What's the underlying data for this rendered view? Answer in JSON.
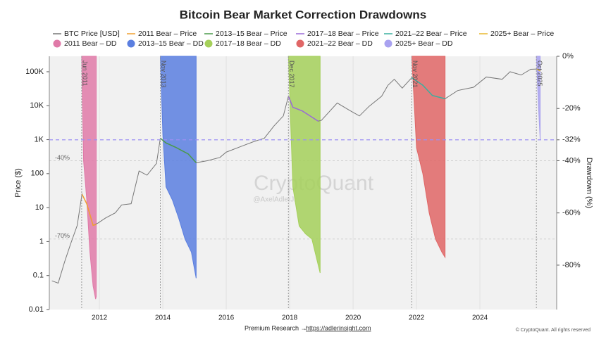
{
  "chart_data": {
    "type": "line",
    "title": "Bitcoin Bear Market Correction Drawdowns",
    "ylabel": "Price ($)",
    "y2label": "Drawdown (%)",
    "log_y": true,
    "xlim": [
      2010.42,
      2026.42
    ],
    "xticks": [
      2012,
      2014,
      2016,
      2018,
      2020,
      2022,
      2024
    ],
    "ylim": [
      0.01,
      285000
    ],
    "yticks": [
      0.01,
      0.1,
      1,
      10,
      100,
      {
        "value": 1000,
        "label": "1K"
      },
      {
        "value": 10000,
        "label": "10K"
      },
      {
        "value": 100000,
        "label": "100K"
      }
    ],
    "y2lim": [
      -97,
      0
    ],
    "y2ticks": [
      {
        "value": 0,
        "label": "0%"
      },
      {
        "value": -20,
        "label": "-20%"
      },
      {
        "value": -32,
        "label": "-32%"
      },
      {
        "value": -40,
        "label": "-40%"
      },
      {
        "value": -60,
        "label": "-60%"
      },
      {
        "value": -80,
        "label": "-80%"
      }
    ],
    "reference_line": {
      "axis": "y2",
      "value": -32,
      "color": "#9b8ff5"
    },
    "level_labels": [
      {
        "value": -40,
        "label": "-40%"
      },
      {
        "value": -70,
        "label": "-70%"
      }
    ],
    "series": [
      {
        "name": "BTC Price [USD]",
        "color": "#777777",
        "x": [
          2010.5,
          2010.7,
          2010.9,
          2011.1,
          2011.3,
          2011.45,
          2011.6,
          2011.8,
          2011.95,
          2012.2,
          2012.5,
          2012.7,
          2013.0,
          2013.25,
          2013.5,
          2013.8,
          2013.92,
          2014.1,
          2014.4,
          2014.8,
          2015.05,
          2015.4,
          2015.8,
          2016.0,
          2016.5,
          2016.9,
          2017.2,
          2017.5,
          2017.8,
          2017.96,
          2018.1,
          2018.4,
          2018.9,
          2019.0,
          2019.5,
          2019.9,
          2020.2,
          2020.5,
          2020.9,
          2021.1,
          2021.3,
          2021.55,
          2021.85,
          2022.2,
          2022.5,
          2022.9,
          2023.3,
          2023.8,
          2024.2,
          2024.7,
          2024.95,
          2025.3,
          2025.6,
          2025.8,
          2025.9
        ],
        "values": [
          0.07,
          0.06,
          0.25,
          0.9,
          3,
          25,
          13,
          3,
          3.5,
          5,
          7,
          12,
          13,
          120,
          90,
          200,
          1100,
          800,
          600,
          380,
          210,
          240,
          300,
          430,
          650,
          900,
          1100,
          2500,
          5000,
          19000,
          9000,
          7000,
          3500,
          3700,
          12000,
          7200,
          5000,
          9500,
          19000,
          40000,
          60000,
          33000,
          67000,
          40000,
          20000,
          16000,
          28000,
          35000,
          70000,
          60000,
          100000,
          80000,
          118000,
          120000,
          105000
        ]
      },
      {
        "name": "2011 Bear – Price",
        "color": "#f0a030",
        "x": [
          2011.45,
          2011.6,
          2011.8,
          2011.9
        ],
        "values": [
          25,
          13,
          3,
          3.2
        ]
      },
      {
        "name": "2013–15 Bear – Price",
        "color": "#4a9a4a",
        "x": [
          2013.92,
          2014.1,
          2014.4,
          2014.8,
          2015.05
        ],
        "values": [
          1100,
          800,
          600,
          380,
          210
        ]
      },
      {
        "name": "2017–18 Bear – Price",
        "color": "#9a6ad8",
        "x": [
          2017.96,
          2018.1,
          2018.4,
          2018.9
        ],
        "values": [
          19000,
          9000,
          7000,
          3500
        ]
      },
      {
        "name": "2021–22 Bear – Price",
        "color": "#3ab0a0",
        "x": [
          2021.85,
          2022.2,
          2022.5,
          2022.9
        ],
        "values": [
          67000,
          40000,
          20000,
          16000
        ]
      },
      {
        "name": "2025+ Bear – Price",
        "color": "#e8b830",
        "x": [
          2025.8,
          2025.9
        ],
        "values": [
          120000,
          105000
        ]
      },
      {
        "name": "2011 Bear – DD",
        "color": "#e07aa8",
        "axis": "y2",
        "x": [
          2011.44,
          2011.5,
          2011.6,
          2011.7,
          2011.8,
          2011.88,
          2011.9
        ],
        "values": [
          0,
          -40,
          -55,
          -75,
          -88,
          -93,
          -92
        ]
      },
      {
        "name": "2013–15 Bear – DD",
        "color": "#5b7fe0",
        "axis": "y2",
        "x": [
          2013.92,
          2014.0,
          2014.1,
          2014.3,
          2014.5,
          2014.7,
          2014.9,
          2015.05
        ],
        "values": [
          0,
          -30,
          -50,
          -55,
          -62,
          -70,
          -75,
          -85
        ]
      },
      {
        "name": "2017–18 Bear – DD",
        "color": "#a5d05a",
        "axis": "y2",
        "x": [
          2017.96,
          2018.1,
          2018.3,
          2018.5,
          2018.7,
          2018.9,
          2018.96
        ],
        "values": [
          0,
          -50,
          -65,
          -68,
          -70,
          -80,
          -83
        ]
      },
      {
        "name": "2021–22 Bear – DD",
        "color": "#e06666",
        "axis": "y2",
        "x": [
          2021.85,
          2022.0,
          2022.2,
          2022.4,
          2022.6,
          2022.8,
          2022.9
        ],
        "values": [
          0,
          -35,
          -45,
          -60,
          -70,
          -75,
          -77
        ]
      },
      {
        "name": "2025+ Bear – DD",
        "color": "#a9a2f0",
        "axis": "y2",
        "x": [
          2025.78,
          2025.85,
          2025.9
        ],
        "values": [
          0,
          -20,
          -32
        ]
      }
    ],
    "annotations": [
      {
        "x": 2011.44,
        "label": "Jun 2011"
      },
      {
        "x": 2013.92,
        "label": "Nov 2013"
      },
      {
        "x": 2017.96,
        "label": "Dec 2017"
      },
      {
        "x": 2021.85,
        "label": "Nov 2021"
      },
      {
        "x": 2025.78,
        "label": "Oct 2025"
      }
    ],
    "watermark": "CryptoQuant",
    "watermark_handle": "@AxelAdlerJr",
    "footer": "Premium Research →",
    "footer_link": "https://adlerinsight.com",
    "copyright": "© CryptoQuant. All rights reserved"
  }
}
